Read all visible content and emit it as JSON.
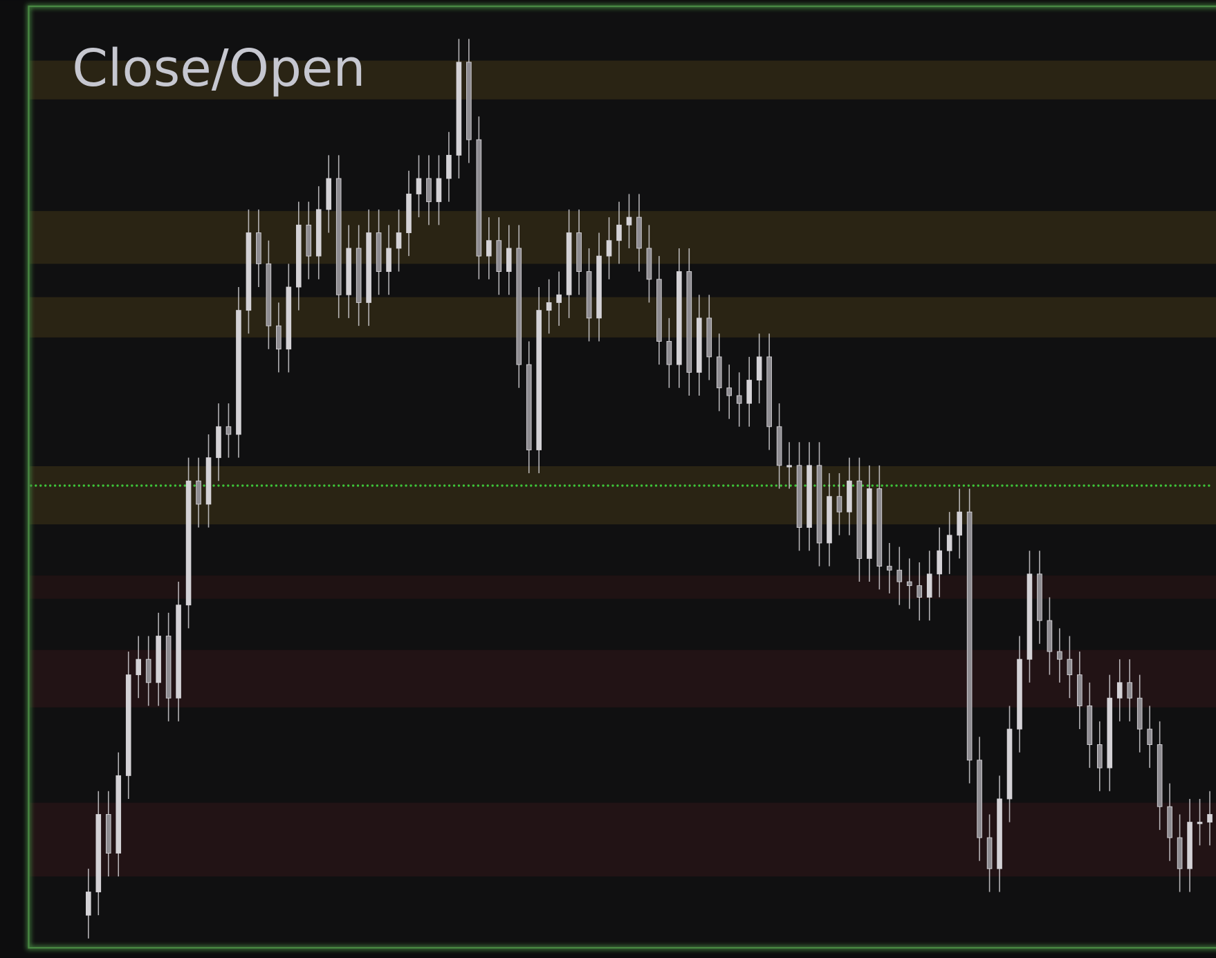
{
  "chart_data": {
    "type": "candlestick",
    "title": "Close/Open",
    "ylim": [
      0,
      121
    ],
    "candle_color": "#d4d2d6",
    "series": {
      "open": [
        4,
        7,
        17,
        12,
        22,
        35,
        37,
        34,
        40,
        32,
        44,
        60,
        57,
        63,
        67,
        66,
        82,
        92,
        88,
        80,
        77,
        85,
        93,
        89,
        95,
        99,
        84,
        90,
        83,
        92,
        87,
        90,
        92,
        97,
        99,
        96,
        99,
        102,
        114,
        104,
        89,
        91,
        87,
        90,
        75,
        64,
        82,
        83,
        84,
        92,
        87,
        81,
        89,
        91,
        93,
        94,
        90,
        86,
        78,
        75,
        87,
        74,
        81,
        76,
        72,
        71,
        70,
        73,
        76,
        67,
        62,
        62,
        54,
        62,
        52,
        58,
        56,
        60,
        50,
        59,
        49,
        48.5,
        47,
        46.5,
        45,
        48,
        51,
        53,
        56,
        24,
        14,
        10,
        19,
        28,
        37,
        48,
        42,
        38,
        37,
        35,
        31,
        26,
        23,
        32,
        34,
        32,
        28,
        26,
        18,
        14,
        10,
        16,
        16
      ],
      "high": [
        10,
        20,
        20,
        25,
        38,
        40,
        40,
        43,
        43,
        47,
        63,
        63,
        66,
        70,
        70,
        85,
        95,
        95,
        91,
        83,
        88,
        96,
        96,
        98,
        102,
        102,
        93,
        93,
        95,
        95,
        93,
        95,
        100,
        102,
        102,
        102,
        105,
        117,
        117,
        107,
        94,
        94,
        93,
        93,
        78,
        85,
        86,
        87,
        95,
        95,
        90,
        92,
        94,
        96,
        97,
        97,
        93,
        89,
        81,
        90,
        90,
        84,
        84,
        79,
        75,
        74,
        76,
        79,
        79,
        70,
        65,
        65,
        65,
        65,
        61,
        61,
        63,
        63,
        62,
        62,
        52,
        51.5,
        50,
        49.5,
        51,
        54,
        56,
        59,
        59,
        27,
        17,
        22,
        31,
        40,
        51,
        51,
        45,
        41,
        40,
        38,
        34,
        29,
        35,
        37,
        37,
        35,
        31,
        29,
        21,
        17,
        19,
        19,
        20
      ],
      "low": [
        1,
        4,
        9,
        9,
        19,
        32,
        31,
        31,
        29,
        29,
        41,
        54,
        54,
        60,
        63,
        63,
        79,
        85,
        77,
        74,
        74,
        82,
        86,
        86,
        92,
        81,
        81,
        80,
        80,
        84,
        84,
        87,
        89,
        94,
        93,
        93,
        96,
        99,
        101,
        86,
        86,
        84,
        84,
        72,
        61,
        61,
        79,
        80,
        81,
        84,
        78,
        78,
        86,
        88,
        90,
        87,
        83,
        75,
        72,
        72,
        71,
        71,
        73,
        69,
        68,
        67,
        67,
        70,
        64,
        59,
        59,
        51,
        51,
        49,
        49,
        53,
        53,
        47,
        47,
        46,
        45.5,
        44,
        43.5,
        42,
        42,
        45,
        48,
        50,
        21,
        11,
        7,
        7,
        16,
        25,
        34,
        39,
        35,
        34,
        32,
        28,
        23,
        20,
        20,
        29,
        29,
        25,
        23,
        15,
        11,
        7,
        7,
        13,
        13
      ],
      "close": [
        7,
        17,
        12,
        22,
        35,
        37,
        34,
        40,
        32,
        44,
        60,
        57,
        63,
        67,
        66,
        82,
        92,
        88,
        80,
        77,
        85,
        93,
        89,
        95,
        99,
        84,
        90,
        83,
        92,
        87,
        90,
        92,
        97,
        99,
        96,
        99,
        102,
        114,
        104,
        89,
        91,
        87,
        90,
        75,
        64,
        82,
        83,
        84,
        92,
        87,
        81,
        89,
        91,
        93,
        94,
        90,
        86,
        78,
        75,
        87,
        74,
        81,
        76,
        72,
        71,
        70,
        73,
        76,
        67,
        62,
        62,
        54,
        62,
        52,
        58,
        56,
        60,
        50,
        59,
        49,
        48.5,
        47,
        46.5,
        45,
        48,
        51,
        53,
        56,
        24,
        14,
        10,
        19,
        28,
        37,
        48,
        42,
        38,
        37,
        35,
        31,
        26,
        23,
        32,
        34,
        32,
        28,
        26,
        18,
        14,
        10,
        16,
        16,
        17
      ]
    },
    "zones": [
      {
        "low": 109.2,
        "high": 114.2,
        "color": "#2a2414"
      },
      {
        "low": 88,
        "high": 94.8,
        "color": "#2a2414"
      },
      {
        "low": 78.5,
        "high": 83.7,
        "color": "#2a2414"
      },
      {
        "low": 54.4,
        "high": 61.9,
        "color": "#2a2414"
      },
      {
        "low": 44.8,
        "high": 47.8,
        "color": "#1f1213"
      },
      {
        "low": 30.8,
        "high": 38.2,
        "color": "#221315"
      },
      {
        "low": 9,
        "high": 18.5,
        "color": "#221315"
      }
    ],
    "level": {
      "value": 59.4,
      "color": "#3ec43a"
    }
  }
}
